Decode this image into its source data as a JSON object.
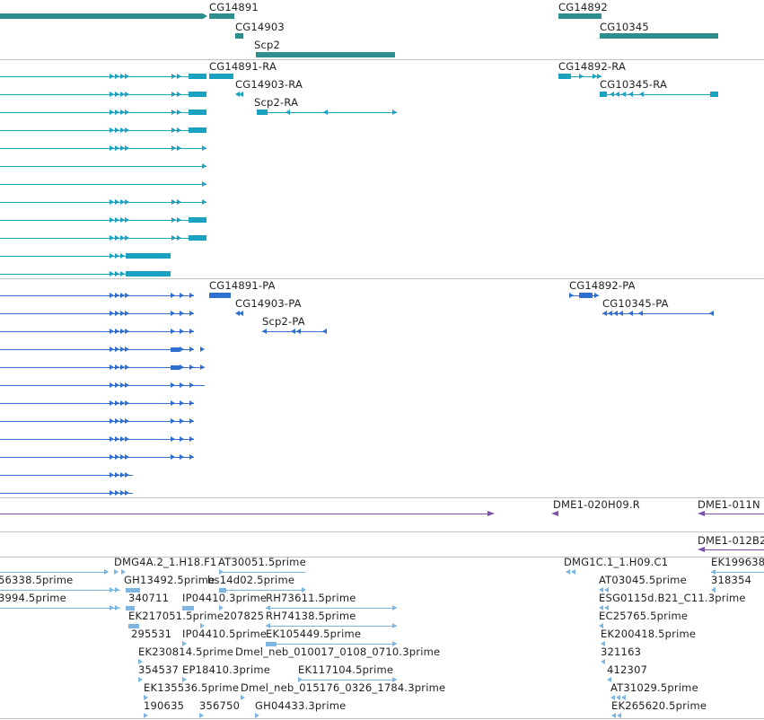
{
  "colors": {
    "gene": "#2e8d8d",
    "mrna": "#1aa3c0",
    "protein": "#2f6fd0",
    "clone": "#7a4fa8",
    "est": "#7db6e0",
    "separator": "#c4c4c4"
  },
  "genes": {
    "cg14891": "CG14891",
    "cg14903": "CG14903",
    "scp2": "Scp2",
    "cg14892": "CG14892",
    "cg10345": "CG10345"
  },
  "transcripts": {
    "cg14891_ra": "CG14891-RA",
    "cg14903_ra": "CG14903-RA",
    "scp2_ra": "Scp2-RA",
    "cg14892_ra": "CG14892-RA",
    "cg10345_ra": "CG10345-RA"
  },
  "proteins": {
    "cg14891_pa": "CG14891-PA",
    "cg14903_pa": "CG14903-PA",
    "scp2_pa": "Scp2-PA",
    "cg14892_pa": "CG14892-PA",
    "cg10345_pa": "CG10345-PA"
  },
  "clones": {
    "c1": "DME1-020H09.R",
    "c2": "DME1-011N",
    "c3": "DME1-012B2"
  },
  "ests": {
    "e01": "56338.5prime",
    "e02": "DMG4A.2_1.H18.F1",
    "e03": "AT30051.5prime",
    "e04": "DMG1C.1_1.H09.C1",
    "e05": "EK199638",
    "e06": "3994.5prime",
    "e07": "GH13492.5prime",
    "e08": "bs14d02.5prime",
    "e09": "AT03045.5prime",
    "e10": "318354",
    "e11": "340711",
    "e12": "IP04410.3prime",
    "e13": "RH73611.5prime",
    "e14": "ESG0115d.B21_C11.3prime",
    "e15": "EK217051.5prime",
    "e16": "207825",
    "e17": "RH74138.5prime",
    "e18": "EC25765.5prime",
    "e19": "295531",
    "e20": "IP04410.5prime",
    "e21": "EK105449.5prime",
    "e22": "EK200418.5prime",
    "e23": "EK230814.5prime",
    "e24": "Dmel_neb_010017_0108_0710.3prime",
    "e25": "321163",
    "e26": "354537",
    "e27": "EP18410.3prime",
    "e28": "EK117104.5prime",
    "e29": "412307",
    "e30": "EK135536.5prime",
    "e31": "Dmel_neb_015176_0326_1784.3prime",
    "e32": "AT31029.5prime",
    "e33": "190635",
    "e34": "356750",
    "e35": "GH04433.3prime",
    "e36": "EK265620.5prime"
  }
}
